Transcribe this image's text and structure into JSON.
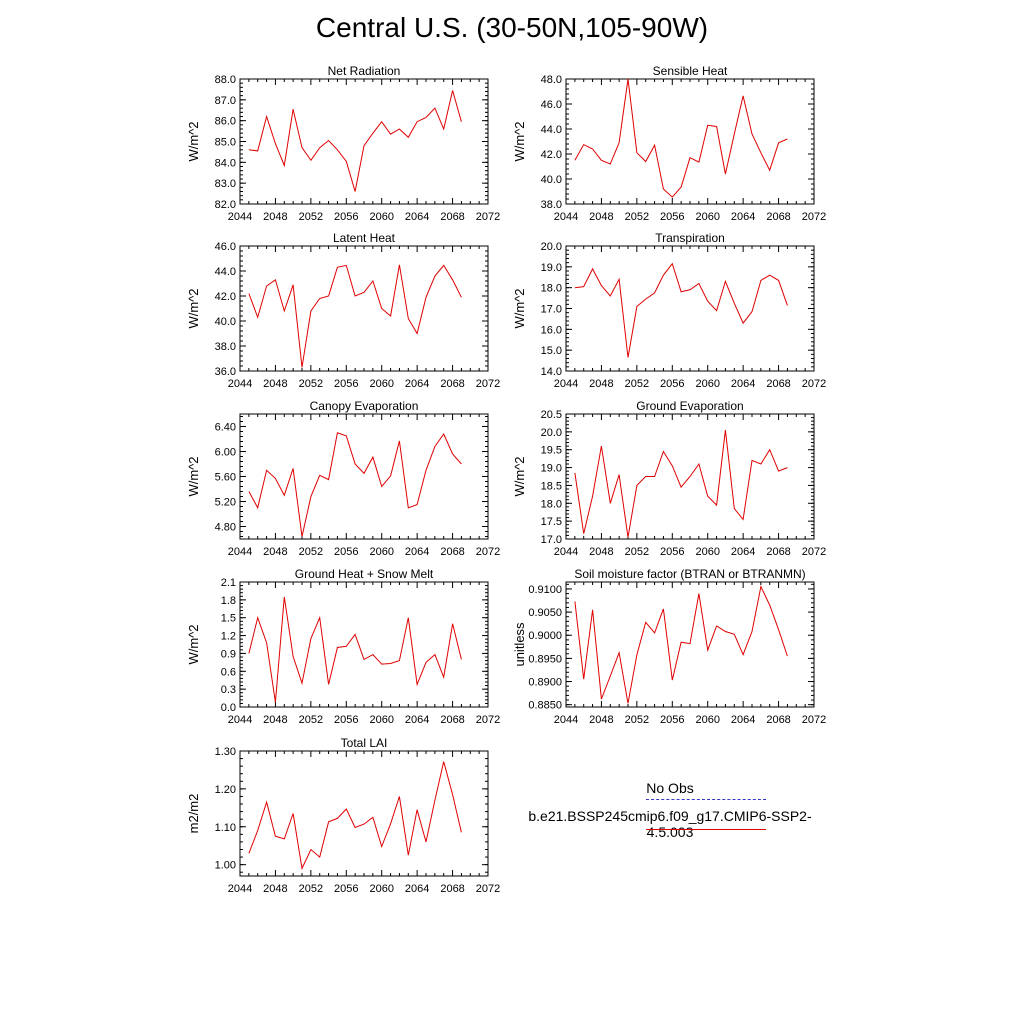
{
  "title": "Central U.S. (30-50N,105-90W)",
  "legend": {
    "obs_label": "No Obs",
    "case_label": "b.e21.BSSP245cmip6.f09_g17.CMIP6-SSP2-4.5.003",
    "case_color": "#e00000",
    "obs_color": "#3535c8"
  },
  "chart_data": [
    {
      "type": "line",
      "title": "Net Radiation",
      "ylabel": "W/m^2",
      "xlim": [
        2044,
        2072
      ],
      "ylim": [
        82.0,
        88.0
      ],
      "xticks": [
        "2044",
        "2048",
        "2052",
        "2056",
        "2060",
        "2064",
        "2068",
        "2072"
      ],
      "yticks": [
        "82.0",
        "83.0",
        "84.0",
        "85.0",
        "86.0",
        "87.0",
        "88.0"
      ],
      "x": [
        2045,
        2046,
        2047,
        2048,
        2049,
        2050,
        2051,
        2052,
        2053,
        2054,
        2055,
        2056,
        2057,
        2058,
        2059,
        2060,
        2061,
        2062,
        2063,
        2064,
        2065,
        2066,
        2067,
        2068,
        2069
      ],
      "series": [
        {
          "values": [
            84.6,
            84.55,
            86.2,
            84.9,
            83.85,
            86.55,
            84.7,
            84.1,
            84.7,
            85.05,
            84.6,
            84.05,
            82.6,
            84.8,
            85.4,
            85.95,
            85.35,
            85.6,
            85.2,
            85.95,
            86.15,
            86.6,
            85.6,
            87.45,
            85.95
          ]
        }
      ]
    },
    {
      "type": "line",
      "title": "Sensible Heat",
      "ylabel": "W/m^2",
      "xlim": [
        2044,
        2072
      ],
      "ylim": [
        38.0,
        48.0
      ],
      "xticks": [
        "2044",
        "2048",
        "2052",
        "2056",
        "2060",
        "2064",
        "2068",
        "2072"
      ],
      "yticks": [
        "38.0",
        "40.0",
        "42.0",
        "44.0",
        "46.0",
        "48.0"
      ],
      "x": [
        2045,
        2046,
        2047,
        2048,
        2049,
        2050,
        2051,
        2052,
        2053,
        2054,
        2055,
        2056,
        2057,
        2058,
        2059,
        2060,
        2061,
        2062,
        2063,
        2064,
        2065,
        2066,
        2067,
        2068,
        2069
      ],
      "series": [
        {
          "values": [
            41.5,
            42.75,
            42.4,
            41.5,
            41.2,
            42.9,
            48.0,
            42.1,
            41.4,
            42.7,
            39.2,
            38.55,
            39.35,
            41.7,
            41.35,
            44.3,
            44.2,
            40.4,
            43.6,
            46.65,
            43.6,
            42.1,
            40.7,
            42.9,
            43.2
          ]
        }
      ]
    },
    {
      "type": "line",
      "title": "Latent Heat",
      "ylabel": "W/m^2",
      "xlim": [
        2044,
        2072
      ],
      "ylim": [
        36.0,
        46.0
      ],
      "xticks": [
        "2044",
        "2048",
        "2052",
        "2056",
        "2060",
        "2064",
        "2068",
        "2072"
      ],
      "yticks": [
        "36.0",
        "38.0",
        "40.0",
        "42.0",
        "44.0",
        "46.0"
      ],
      "x": [
        2045,
        2046,
        2047,
        2048,
        2049,
        2050,
        2051,
        2052,
        2053,
        2054,
        2055,
        2056,
        2057,
        2058,
        2059,
        2060,
        2061,
        2062,
        2063,
        2064,
        2065,
        2066,
        2067,
        2068,
        2069
      ],
      "series": [
        {
          "values": [
            42.2,
            40.3,
            42.8,
            43.3,
            40.8,
            42.9,
            36.3,
            40.8,
            41.8,
            42.0,
            44.3,
            44.45,
            42.0,
            42.3,
            43.2,
            41.0,
            40.4,
            44.5,
            40.2,
            39.0,
            41.9,
            43.6,
            44.45,
            43.3,
            41.9
          ]
        }
      ]
    },
    {
      "type": "line",
      "title": "Transpiration",
      "ylabel": "W/m^2",
      "xlim": [
        2044,
        2072
      ],
      "ylim": [
        14.0,
        20.0
      ],
      "xticks": [
        "2044",
        "2048",
        "2052",
        "2056",
        "2060",
        "2064",
        "2068",
        "2072"
      ],
      "yticks": [
        "14.0",
        "15.0",
        "16.0",
        "17.0",
        "18.0",
        "19.0",
        "20.0"
      ],
      "x": [
        2045,
        2046,
        2047,
        2048,
        2049,
        2050,
        2051,
        2052,
        2053,
        2054,
        2055,
        2056,
        2057,
        2058,
        2059,
        2060,
        2061,
        2062,
        2063,
        2064,
        2065,
        2066,
        2067,
        2068,
        2069
      ],
      "series": [
        {
          "values": [
            18.0,
            18.05,
            18.9,
            18.1,
            17.6,
            18.4,
            14.65,
            17.1,
            17.45,
            17.75,
            18.6,
            19.15,
            17.8,
            17.9,
            18.2,
            17.35,
            16.9,
            18.3,
            17.25,
            16.3,
            16.85,
            18.35,
            18.6,
            18.35,
            17.15
          ]
        }
      ]
    },
    {
      "type": "line",
      "title": "Canopy Evaporation",
      "ylabel": "W/m^2",
      "xlim": [
        2044,
        2072
      ],
      "ylim": [
        4.6,
        6.6
      ],
      "xticks": [
        "2044",
        "2048",
        "2052",
        "2056",
        "2060",
        "2064",
        "2068",
        "2072"
      ],
      "yticks": [
        "4.80",
        "5.20",
        "5.60",
        "6.00",
        "6.40"
      ],
      "ytick_values": [
        4.8,
        5.2,
        5.6,
        6.0,
        6.4
      ],
      "x": [
        2045,
        2046,
        2047,
        2048,
        2049,
        2050,
        2051,
        2052,
        2053,
        2054,
        2055,
        2056,
        2057,
        2058,
        2059,
        2060,
        2061,
        2062,
        2063,
        2064,
        2065,
        2066,
        2067,
        2068,
        2069
      ],
      "series": [
        {
          "values": [
            5.36,
            5.1,
            5.7,
            5.57,
            5.3,
            5.73,
            4.64,
            5.28,
            5.62,
            5.55,
            6.3,
            6.25,
            5.8,
            5.65,
            5.91,
            5.44,
            5.61,
            6.17,
            5.1,
            5.15,
            5.7,
            6.08,
            6.28,
            5.96,
            5.8
          ]
        }
      ]
    },
    {
      "type": "line",
      "title": "Ground Evaporation",
      "ylabel": "W/m^2",
      "xlim": [
        2044,
        2072
      ],
      "ylim": [
        17.0,
        20.5
      ],
      "xticks": [
        "2044",
        "2048",
        "2052",
        "2056",
        "2060",
        "2064",
        "2068",
        "2072"
      ],
      "yticks": [
        "17.0",
        "17.5",
        "18.0",
        "18.5",
        "19.0",
        "19.5",
        "20.0",
        "20.5"
      ],
      "x": [
        2045,
        2046,
        2047,
        2048,
        2049,
        2050,
        2051,
        2052,
        2053,
        2054,
        2055,
        2056,
        2057,
        2058,
        2059,
        2060,
        2061,
        2062,
        2063,
        2064,
        2065,
        2066,
        2067,
        2068,
        2069
      ],
      "series": [
        {
          "values": [
            18.85,
            17.15,
            18.2,
            19.6,
            18.0,
            18.8,
            17.05,
            18.5,
            18.75,
            18.75,
            19.45,
            19.05,
            18.45,
            18.75,
            19.1,
            18.2,
            17.95,
            20.05,
            17.85,
            17.55,
            19.2,
            19.1,
            19.5,
            18.9,
            19.0
          ]
        }
      ]
    },
    {
      "type": "line",
      "title": "Ground Heat + Snow Melt",
      "ylabel": "W/m^2",
      "xlim": [
        2044,
        2072
      ],
      "ylim": [
        0.0,
        2.1
      ],
      "xticks": [
        "2044",
        "2048",
        "2052",
        "2056",
        "2060",
        "2064",
        "2068",
        "2072"
      ],
      "yticks": [
        "0.0",
        "0.3",
        "0.6",
        "0.9",
        "1.2",
        "1.5",
        "1.8",
        "2.1"
      ],
      "x": [
        2045,
        2046,
        2047,
        2048,
        2049,
        2050,
        2051,
        2052,
        2053,
        2054,
        2055,
        2056,
        2057,
        2058,
        2059,
        2060,
        2061,
        2062,
        2063,
        2064,
        2065,
        2066,
        2067,
        2068,
        2069
      ],
      "series": [
        {
          "values": [
            0.9,
            1.5,
            1.08,
            0.08,
            1.85,
            0.85,
            0.4,
            1.15,
            1.5,
            0.38,
            1.0,
            1.02,
            1.22,
            0.8,
            0.88,
            0.72,
            0.73,
            0.78,
            1.5,
            0.38,
            0.75,
            0.88,
            0.5,
            1.4,
            0.8
          ]
        }
      ]
    },
    {
      "type": "line",
      "title": "Soil moisture factor (BTRAN or BTRANMN)",
      "ylabel": "unitless",
      "xlim": [
        2044,
        2072
      ],
      "ylim": [
        0.8845,
        0.9115
      ],
      "xticks": [
        "2044",
        "2048",
        "2052",
        "2056",
        "2060",
        "2064",
        "2068",
        "2072"
      ],
      "yticks": [
        "0.8850",
        "0.8900",
        "0.8950",
        "0.9000",
        "0.9050",
        "0.9100"
      ],
      "ytick_values": [
        0.885,
        0.89,
        0.895,
        0.9,
        0.905,
        0.91
      ],
      "x": [
        2045,
        2046,
        2047,
        2048,
        2049,
        2050,
        2051,
        2052,
        2053,
        2054,
        2055,
        2056,
        2057,
        2058,
        2059,
        2060,
        2061,
        2062,
        2063,
        2064,
        2065,
        2066,
        2067,
        2068,
        2069
      ],
      "series": [
        {
          "values": [
            0.9073,
            0.8905,
            0.9055,
            0.8862,
            0.8912,
            0.8962,
            0.8853,
            0.8958,
            0.9028,
            0.9005,
            0.9057,
            0.8903,
            0.8985,
            0.8982,
            0.909,
            0.8968,
            0.902,
            0.9008,
            0.9002,
            0.8958,
            0.9008,
            0.9105,
            0.9065,
            0.9012,
            0.8955
          ]
        }
      ]
    },
    {
      "type": "line",
      "title": "Total LAI",
      "ylabel": "m2/m2",
      "xlim": [
        2044,
        2072
      ],
      "ylim": [
        0.97,
        1.3
      ],
      "xticks": [
        "2044",
        "2048",
        "2052",
        "2056",
        "2060",
        "2064",
        "2068",
        "2072"
      ],
      "yticks": [
        "1.00",
        "1.10",
        "1.20",
        "1.30"
      ],
      "ytick_values": [
        1.0,
        1.1,
        1.2,
        1.3
      ],
      "x": [
        2045,
        2046,
        2047,
        2048,
        2049,
        2050,
        2051,
        2052,
        2053,
        2054,
        2055,
        2056,
        2057,
        2058,
        2059,
        2060,
        2061,
        2062,
        2063,
        2064,
        2065,
        2066,
        2067,
        2068,
        2069
      ],
      "series": [
        {
          "values": [
            1.03,
            1.09,
            1.165,
            1.075,
            1.068,
            1.135,
            0.99,
            1.04,
            1.02,
            1.113,
            1.122,
            1.147,
            1.098,
            1.107,
            1.125,
            1.048,
            1.108,
            1.18,
            1.025,
            1.145,
            1.06,
            1.17,
            1.272,
            1.185,
            1.085
          ]
        }
      ]
    }
  ]
}
